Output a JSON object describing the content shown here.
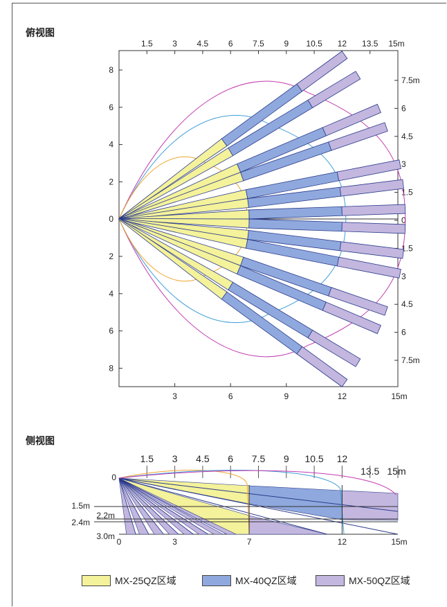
{
  "top_view": {
    "title": "俯视图",
    "top_ticks": [
      "1.5",
      "3",
      "4.5",
      "6",
      "7.5",
      "9",
      "10.5",
      "12",
      "13.5",
      "15m"
    ],
    "bottom_ticks": [
      "3",
      "6",
      "9",
      "12",
      "15m"
    ],
    "left_ticks": [
      "8",
      "6",
      "4",
      "2",
      "0",
      "2",
      "4",
      "6",
      "8"
    ],
    "right_ticks": [
      "7.5m",
      "6",
      "4.5",
      "3",
      "1.5",
      "0",
      "1.5",
      "3",
      "4.5",
      "6",
      "7.5m"
    ],
    "beam_angles_deg": [
      -36,
      -31,
      -23,
      -19,
      -11,
      -7,
      -2,
      2,
      7,
      11,
      19,
      23,
      31,
      36
    ],
    "zone_reach_m": {
      "mx25": 7,
      "mx40": 12,
      "mx50": 15
    }
  },
  "side_view": {
    "title": "侧视图",
    "top_ticks": [
      "1.5",
      "3",
      "4.5",
      "6",
      "7.5",
      "9",
      "10.5",
      "12",
      "13.5",
      "15m"
    ],
    "bottom_ticks": [
      "0",
      "3",
      "7",
      "12",
      "15m"
    ],
    "height_labels": [
      "0",
      "1.5m",
      "2.2m",
      "2.4m",
      "3.0m"
    ]
  },
  "legend": [
    {
      "label": "MX-25QZ区域",
      "color": "#f4f29a"
    },
    {
      "label": "MX-40QZ区域",
      "color": "#8fa9de"
    },
    {
      "label": "MX-50QZ区域",
      "color": "#c3b7df"
    }
  ],
  "colors": {
    "mx25_fill": "#f4f29a",
    "mx40_fill": "#8fa9de",
    "mx50_fill": "#c3b7df",
    "mx25_boundary": "#f0a42e",
    "mx40_boundary": "#3f9fd8",
    "mx50_boundary": "#c23ab0",
    "beam_line": "#2a3a8a"
  }
}
